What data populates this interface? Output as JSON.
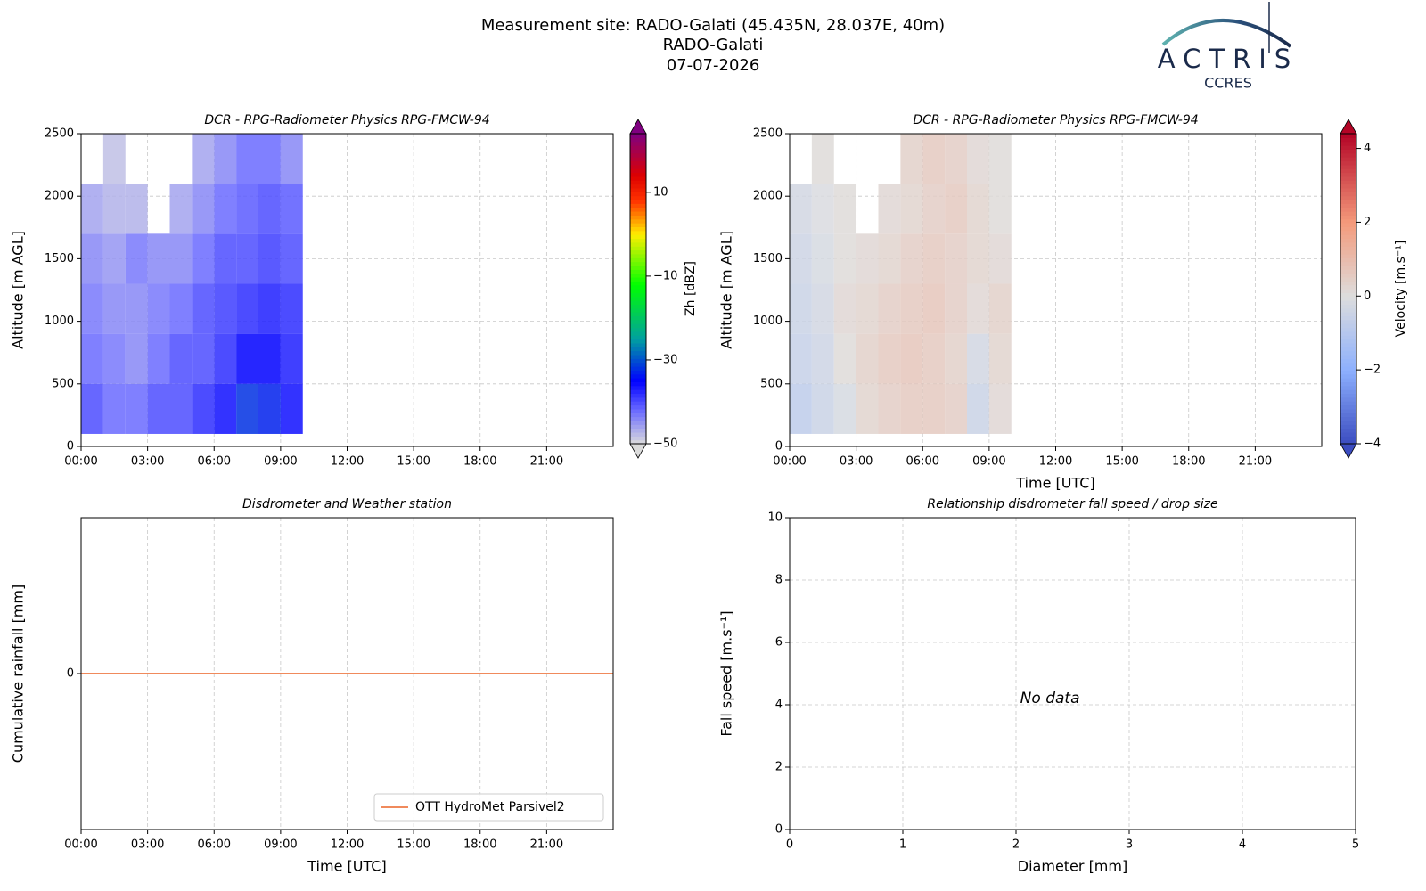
{
  "header": {
    "lines": [
      "Measurement site: RADO-Galati (45.435N, 28.037E, 40m)",
      "RADO-Galati",
      "07-07-2026"
    ]
  },
  "logo": {
    "title": "ACTRIS",
    "subtitle": "CCRES"
  },
  "chart_data": [
    {
      "type": "heatmap",
      "title": "DCR - RPG-Radiometer Physics RPG-FMCW-94",
      "y_label": "Altitude [m AGL]",
      "xlim": [
        0,
        24
      ],
      "xticks": [
        {
          "value": 0,
          "label": "00:00"
        },
        {
          "value": 3,
          "label": "03:00"
        },
        {
          "value": 6,
          "label": "06:00"
        },
        {
          "value": 9,
          "label": "09:00"
        },
        {
          "value": 12,
          "label": "12:00"
        },
        {
          "value": 15,
          "label": "15:00"
        },
        {
          "value": 18,
          "label": "18:00"
        },
        {
          "value": 21,
          "label": "21:00"
        }
      ],
      "ylim": [
        0,
        2500
      ],
      "yticks": [
        0,
        500,
        1000,
        1500,
        2000,
        2500
      ],
      "grid": true,
      "x": [
        0.5,
        1.5,
        2.5,
        3.5,
        4.5,
        5.5,
        6.5,
        7.5,
        8.5,
        9.5
      ],
      "y": [
        300,
        700,
        1100,
        1500,
        1900,
        2300
      ],
      "z": [
        [
          -40,
          -42,
          -42,
          -40,
          -40,
          -38,
          -36,
          -32,
          -33,
          -36
        ],
        [
          -42,
          -43,
          -44,
          -42,
          -40,
          -40,
          -38,
          -35,
          -35,
          -37
        ],
        [
          -43,
          -44,
          -44,
          -43,
          -42,
          -40,
          -39,
          -38,
          -37,
          -38
        ],
        [
          -44,
          -45,
          -43,
          -44,
          -44,
          -42,
          -40,
          -40,
          -39,
          -40
        ],
        [
          -46,
          -47,
          -47,
          null,
          -46,
          -44,
          -42,
          -41,
          -40,
          -41
        ],
        [
          null,
          -48,
          null,
          null,
          null,
          -46,
          -44,
          -42,
          -42,
          -44
        ]
      ],
      "colorbar": {
        "label": "Zh [dBZ]",
        "zlim": [
          -50,
          24
        ],
        "zticks": [
          {
            "value": -50,
            "label": "−50"
          },
          {
            "value": -30,
            "label": "−30"
          },
          {
            "value": -10,
            "label": "−10"
          },
          10
        ],
        "colormap": [
          {
            "value": -50,
            "color": "#dcdcdc"
          },
          {
            "value": -42,
            "color": "#6a6aff"
          },
          {
            "value": -35,
            "color": "#0000ff"
          },
          {
            "value": -25,
            "color": "#00a0a0"
          },
          {
            "value": -12,
            "color": "#00ff00"
          },
          {
            "value": 0,
            "color": "#ffee00"
          },
          {
            "value": 8,
            "color": "#ff3300"
          },
          {
            "value": 14,
            "color": "#dd0000"
          },
          {
            "value": 24,
            "color": "#800080"
          }
        ]
      }
    },
    {
      "type": "heatmap",
      "title": "DCR - RPG-Radiometer Physics RPG-FMCW-94",
      "x_label": "Time [UTC]",
      "y_label": "Altitude [m AGL]",
      "xlim": [
        0,
        24
      ],
      "xticks": [
        {
          "value": 0,
          "label": "00:00"
        },
        {
          "value": 3,
          "label": "03:00"
        },
        {
          "value": 6,
          "label": "06:00"
        },
        {
          "value": 9,
          "label": "09:00"
        },
        {
          "value": 12,
          "label": "12:00"
        },
        {
          "value": 15,
          "label": "15:00"
        },
        {
          "value": 18,
          "label": "18:00"
        },
        {
          "value": 21,
          "label": "21:00"
        }
      ],
      "ylim": [
        0,
        2500
      ],
      "yticks": [
        0,
        500,
        1000,
        1500,
        2000,
        2500
      ],
      "grid": true,
      "x": [
        0.5,
        1.5,
        2.5,
        3.5,
        4.5,
        5.5,
        6.5,
        7.5,
        8.5,
        9.5
      ],
      "y": [
        300,
        700,
        1100,
        1500,
        1900,
        2300
      ],
      "z": [
        [
          -0.8,
          -0.5,
          -0.2,
          0.3,
          0.5,
          0.6,
          0.6,
          0.5,
          -0.5,
          0.2
        ],
        [
          -0.6,
          -0.4,
          0.1,
          0.4,
          0.6,
          0.7,
          0.6,
          0.4,
          -0.3,
          0.3
        ],
        [
          -0.5,
          -0.3,
          0.2,
          0.3,
          0.5,
          0.6,
          0.7,
          0.5,
          0.2,
          0.4
        ],
        [
          -0.4,
          -0.2,
          0.1,
          0.2,
          0.3,
          0.5,
          0.6,
          0.5,
          0.3,
          0.2
        ],
        [
          -0.3,
          -0.1,
          0.1,
          null,
          0.2,
          0.3,
          0.5,
          0.6,
          0.3,
          0.1
        ],
        [
          null,
          0.1,
          null,
          null,
          null,
          0.4,
          0.6,
          0.5,
          0.2,
          0.1
        ]
      ],
      "colorbar": {
        "label": "Velocity [m.s⁻¹]",
        "zlim": [
          -4,
          4.4
        ],
        "zticks": [
          {
            "value": -4,
            "label": "−4"
          },
          {
            "value": -2,
            "label": "−2"
          },
          0,
          2,
          4
        ],
        "colormap": [
          {
            "value": -4,
            "color": "#3b4cc0"
          },
          {
            "value": -2,
            "color": "#8db0fe"
          },
          {
            "value": 0,
            "color": "#dddddd"
          },
          {
            "value": 2,
            "color": "#f49a7b"
          },
          {
            "value": 4.4,
            "color": "#b40426"
          }
        ]
      }
    },
    {
      "type": "line",
      "title": "Disdrometer and Weather station",
      "x_label": "Time [UTC]",
      "y_label": "Cumulative rainfall [mm]",
      "xlim": [
        0,
        24
      ],
      "xticks": [
        {
          "value": 0,
          "label": "00:00"
        },
        {
          "value": 3,
          "label": "03:00"
        },
        {
          "value": 6,
          "label": "06:00"
        },
        {
          "value": 9,
          "label": "09:00"
        },
        {
          "value": 12,
          "label": "12:00"
        },
        {
          "value": 15,
          "label": "15:00"
        },
        {
          "value": 18,
          "label": "18:00"
        },
        {
          "value": 21,
          "label": "21:00"
        }
      ],
      "ylim": [
        -0.055,
        0.055
      ],
      "yticks": [
        0
      ],
      "grid": true,
      "x": [
        0,
        24
      ],
      "series": [
        {
          "name": "OTT HydroMet Parsivel2",
          "color": "#f08a5c",
          "values": [
            0,
            0
          ]
        }
      ],
      "legend": "lower right"
    },
    {
      "type": "scatter",
      "title": "Relationship disdrometer fall speed / drop size",
      "x_label": "Diameter [mm]",
      "y_label": "Fall speed [m.s⁻¹]",
      "xlim": [
        0,
        5
      ],
      "xticks": [
        0,
        1,
        2,
        3,
        4,
        5
      ],
      "ylim": [
        0,
        10
      ],
      "yticks": [
        0,
        2,
        4,
        6,
        8,
        10
      ],
      "grid": true,
      "annotation": "No data"
    }
  ]
}
